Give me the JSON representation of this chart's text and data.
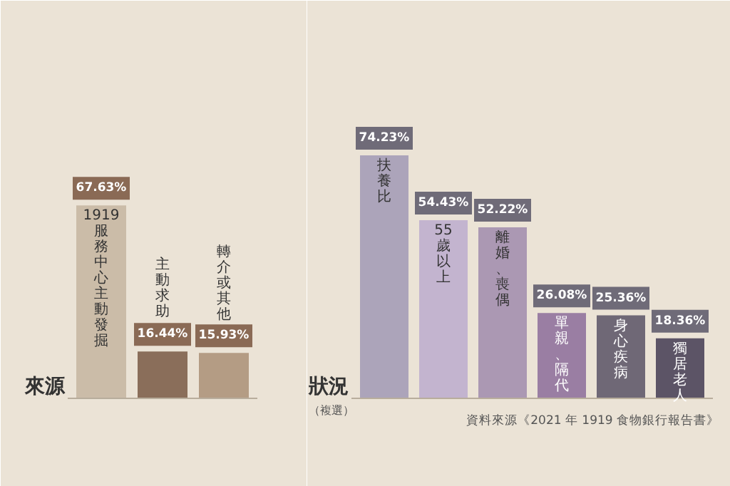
{
  "chart_data": [
    {
      "type": "bar",
      "title": "來源",
      "categories": [
        "1919服務中心主動發掘",
        "主動求助",
        "轉介或其他"
      ],
      "values": [
        67.63,
        16.44,
        15.93
      ],
      "colors": [
        "#cbbca8",
        "#8a6e5a",
        "#b49c84"
      ],
      "value_labels": [
        "67.63%",
        "16.44%",
        "15.93%"
      ]
    },
    {
      "type": "bar",
      "title": "狀況",
      "subtitle": "（複選）",
      "categories": [
        "扶養比",
        "55歲以上",
        "離婚、喪偶",
        "單親、隔代",
        "身心疾病",
        "獨居老人"
      ],
      "values": [
        74.23,
        54.43,
        52.22,
        26.08,
        25.36,
        18.36
      ],
      "colors": [
        "#aca4ba",
        "#c3b4cf",
        "#ab98b3",
        "#9a7ea3",
        "#6f6876",
        "#5c5466"
      ],
      "value_labels": [
        "74.23%",
        "54.43%",
        "52.22%",
        "26.08%",
        "25.36%",
        "18.36%"
      ],
      "annotations": [
        "資料來源《2021 年 1919 食物銀行報告書》"
      ]
    }
  ]
}
